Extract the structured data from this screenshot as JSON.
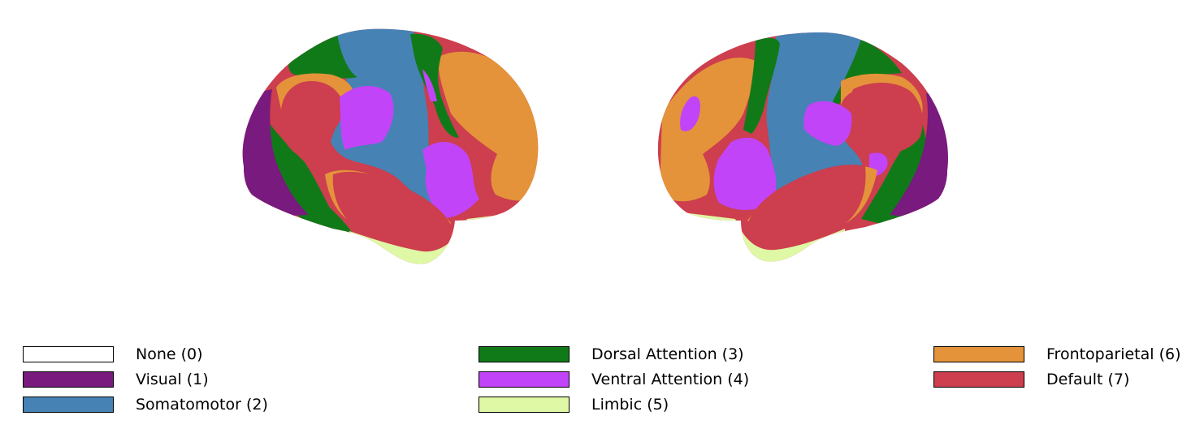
{
  "colors": {
    "none": "#ffffff",
    "visual": "#781a7e",
    "somatomotor": "#4682b4",
    "dorsal_attention": "#117a18",
    "ventral_attention": "#c244f8",
    "limbic": "#dff8a5",
    "frontoparietal": "#e4933a",
    "default": "#cd3e4e"
  },
  "legend": {
    "items": [
      {
        "label": "None (0)",
        "color": "#ffffff"
      },
      {
        "label": "Visual (1)",
        "color": "#781a7e"
      },
      {
        "label": "Somatomotor (2)",
        "color": "#4682b4"
      },
      {
        "label": "Dorsal Attention (3)",
        "color": "#117a18"
      },
      {
        "label": "Ventral Attention (4)",
        "color": "#c244f8"
      },
      {
        "label": "Limbic (5)",
        "color": "#dff8a5"
      },
      {
        "label": "Frontoparietal (6)",
        "color": "#e4933a"
      },
      {
        "label": "Default (7)",
        "color": "#cd3e4e"
      }
    ]
  }
}
